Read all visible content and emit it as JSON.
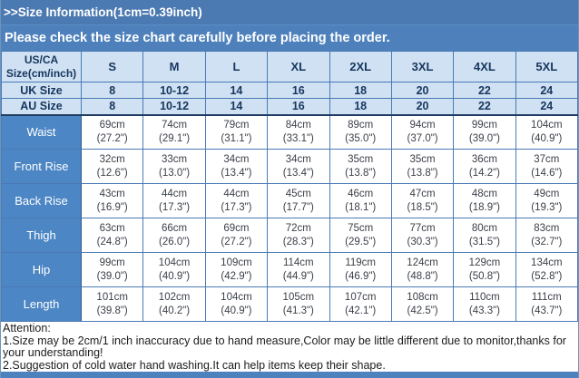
{
  "header": {
    "title": ">>Size Information(1cm=0.39inch)",
    "subtitle": "Please check the size chart carefully before placing the order."
  },
  "table": {
    "corner_label": "US/CA Size(cm/inch)",
    "size_columns": [
      "S",
      "M",
      "L",
      "XL",
      "2XL",
      "3XL",
      "4XL",
      "5XL"
    ],
    "uk_row": {
      "label": "UK Size",
      "values": [
        "8",
        "10-12",
        "14",
        "16",
        "18",
        "20",
        "22",
        "24"
      ]
    },
    "au_row": {
      "label": "AU Size",
      "values": [
        "8",
        "10-12",
        "14",
        "16",
        "18",
        "20",
        "22",
        "24"
      ]
    },
    "measurement_rows": [
      {
        "label": "Waist",
        "cm": [
          "69cm",
          "74cm",
          "79cm",
          "84cm",
          "89cm",
          "94cm",
          "99cm",
          "104cm"
        ],
        "inch": [
          "(27.2\")",
          "(29.1\")",
          "(31.1\")",
          "(33.1\")",
          "(35.0\")",
          "(37.0\")",
          "(39.0\")",
          "(40.9\")"
        ]
      },
      {
        "label": "Front Rise",
        "cm": [
          "32cm",
          "33cm",
          "34cm",
          "34cm",
          "35cm",
          "35cm",
          "36cm",
          "37cm"
        ],
        "inch": [
          "(12.6\")",
          "(13.0\")",
          "(13.4\")",
          "(13.4\")",
          "(13.8\")",
          "(13.8\")",
          "(14.2\")",
          "(14.6\")"
        ]
      },
      {
        "label": "Back Rise",
        "cm": [
          "43cm",
          "44cm",
          "44cm",
          "45cm",
          "46cm",
          "47cm",
          "48cm",
          "49cm"
        ],
        "inch": [
          "(16.9\")",
          "(17.3\")",
          "(17.3\")",
          "(17.7\")",
          "(18.1\")",
          "(18.5\")",
          "(18.9\")",
          "(19.3\")"
        ]
      },
      {
        "label": "Thigh",
        "cm": [
          "63cm",
          "66cm",
          "69cm",
          "72cm",
          "75cm",
          "77cm",
          "80cm",
          "83cm"
        ],
        "inch": [
          "(24.8\")",
          "(26.0\")",
          "(27.2\")",
          "(28.3\")",
          "(29.5\")",
          "(30.3\")",
          "(31.5\")",
          "(32.7\")"
        ]
      },
      {
        "label": "Hip",
        "cm": [
          "99cm",
          "104cm",
          "109cm",
          "114cm",
          "119cm",
          "124cm",
          "129cm",
          "134cm"
        ],
        "inch": [
          "(39.0\")",
          "(40.9\")",
          "(42.9\")",
          "(44.9\")",
          "(46.9\")",
          "(48.8\")",
          "(50.8\")",
          "(52.8\")"
        ]
      },
      {
        "label": "Length",
        "cm": [
          "101cm",
          "102cm",
          "104cm",
          "105cm",
          "107cm",
          "108cm",
          "110cm",
          "111cm"
        ],
        "inch": [
          "(39.8\")",
          "(40.2\")",
          "(40.9\")",
          "(41.3\")",
          "(42.1\")",
          "(42.5\")",
          "(43.3\")",
          "(43.7\")"
        ]
      }
    ]
  },
  "attention": {
    "heading": "Attention:",
    "line1": "1.Size may be 2cm/1 inch inaccuracy due to hand measure,Color may be little different due to monitor,thanks for your understanding!",
    "line2": "2.Suggestion of cold water hand washing.It can help items keep their shape."
  },
  "colors": {
    "title_bar_blue": "#4b79b1",
    "subtitle_bar_blue": "#4e81bb",
    "header_cell_blue": "#cfe1f3",
    "label_cell_blue": "#4c86c4",
    "border_blue": "#4a7ab5",
    "dark_border_navy": "#1f3c61",
    "header_text_navy": "#17365d",
    "body_text": "#3a3f47",
    "bottom_bar_blue": "#4e82be"
  }
}
